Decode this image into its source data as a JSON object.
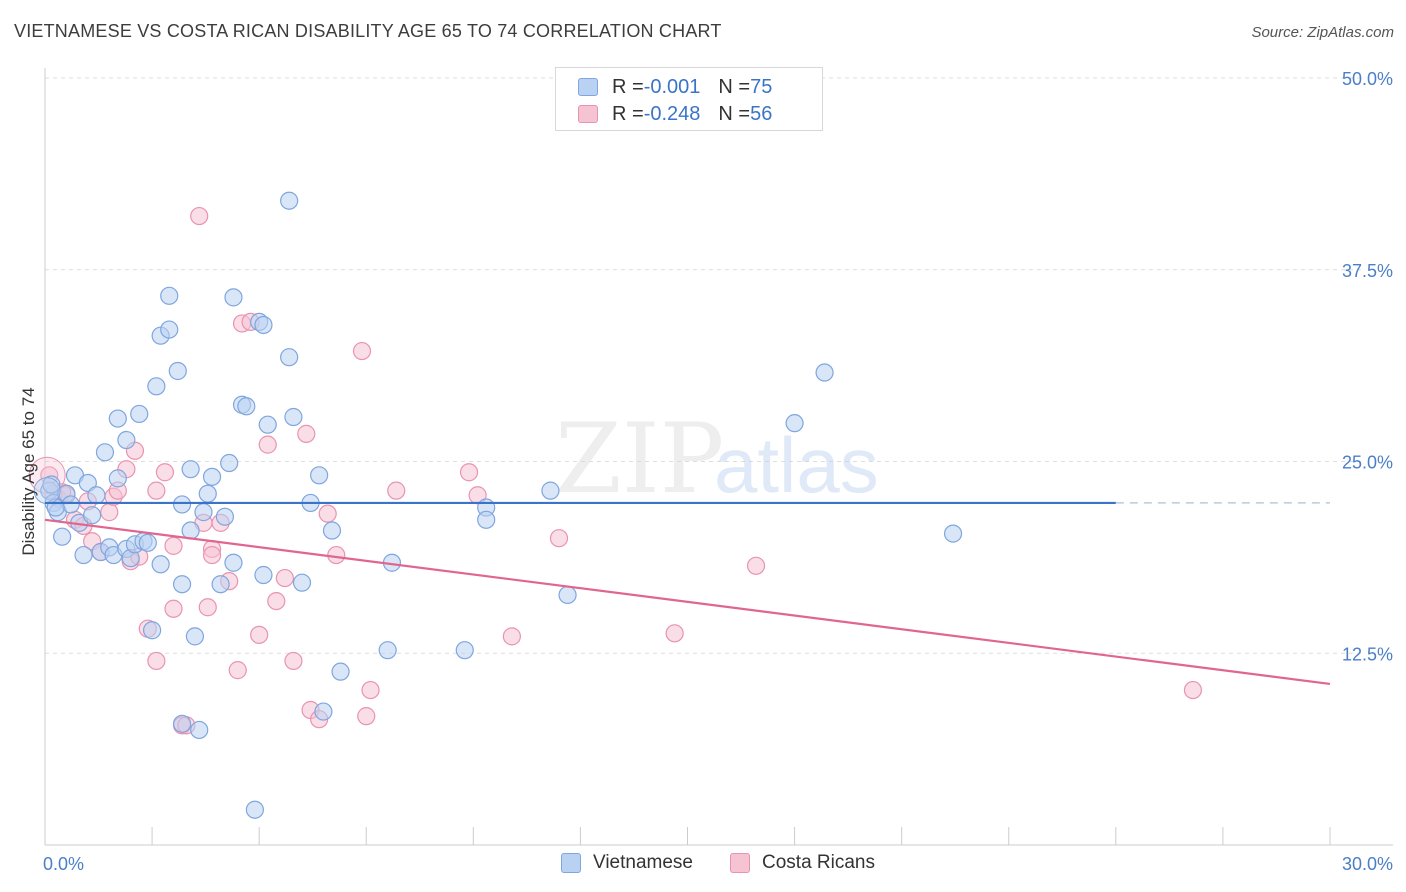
{
  "title": "VIETNAMESE VS COSTA RICAN DISABILITY AGE 65 TO 74 CORRELATION CHART",
  "source": "Source: ZipAtlas.com",
  "watermark": {
    "zip": "ZIP",
    "atlas": "atlas"
  },
  "colors": {
    "blue_fill": "#b9d1f3",
    "blue_stroke": "#7fa6de",
    "blue_line": "#3a74c8",
    "pink_fill": "#f6c3d3",
    "pink_stroke": "#e993b0",
    "pink_line": "#e0668f",
    "axis_text": "#4a7fc8",
    "grid": "#dddddd"
  },
  "legend": {
    "rows": [
      {
        "r_label": "R = ",
        "r_value": "-0.001",
        "n_label": "N = ",
        "n_value": "75"
      },
      {
        "r_label": "R = ",
        "r_value": "-0.248",
        "n_label": "N = ",
        "n_value": "56"
      }
    ]
  },
  "bottom_legend": [
    "Vietnamese",
    "Costa Ricans"
  ],
  "chart_data": {
    "type": "scatter",
    "xlabel": "",
    "ylabel": "Disability Age 65 to 74",
    "xlim": [
      0,
      30
    ],
    "ylim": [
      0,
      50
    ],
    "x_tick_labels": [
      "0.0%",
      "30.0%"
    ],
    "y_ticks": [
      12.5,
      25.0,
      37.5,
      50.0
    ],
    "y_tick_labels": [
      "12.5%",
      "25.0%",
      "37.5%",
      "50.0%"
    ],
    "grid": "horizontal dashed",
    "legend_position": "top-center",
    "series": [
      {
        "name": "Vietnamese",
        "trend": {
          "x": [
            0,
            25.0
          ],
          "y": [
            22.3,
            22.3
          ],
          "dashed_extension_to_x": 30
        },
        "points": [
          [
            0.1,
            23.1
          ],
          [
            0.2,
            22.3
          ],
          [
            0.3,
            21.7
          ],
          [
            0.4,
            20.1
          ],
          [
            0.5,
            22.9
          ],
          [
            0.6,
            22.2
          ],
          [
            0.7,
            24.1
          ],
          [
            0.8,
            21.0
          ],
          [
            0.9,
            18.9
          ],
          [
            1.0,
            23.6
          ],
          [
            1.1,
            21.5
          ],
          [
            1.2,
            22.8
          ],
          [
            1.3,
            19.1
          ],
          [
            1.4,
            25.6
          ],
          [
            1.5,
            19.4
          ],
          [
            1.6,
            18.9
          ],
          [
            1.7,
            23.9
          ],
          [
            1.7,
            27.8
          ],
          [
            1.9,
            19.3
          ],
          [
            1.9,
            26.4
          ],
          [
            2.0,
            18.7
          ],
          [
            2.1,
            19.6
          ],
          [
            2.2,
            28.1
          ],
          [
            2.3,
            19.8
          ],
          [
            2.4,
            19.7
          ],
          [
            2.5,
            14.0
          ],
          [
            2.6,
            29.9
          ],
          [
            2.7,
            33.2
          ],
          [
            2.7,
            18.3
          ],
          [
            2.9,
            33.6
          ],
          [
            2.9,
            35.8
          ],
          [
            3.1,
            30.9
          ],
          [
            3.2,
            17.0
          ],
          [
            3.2,
            7.9
          ],
          [
            3.2,
            22.2
          ],
          [
            3.4,
            24.5
          ],
          [
            3.4,
            20.5
          ],
          [
            3.5,
            13.6
          ],
          [
            3.6,
            7.5
          ],
          [
            3.7,
            21.7
          ],
          [
            3.8,
            22.9
          ],
          [
            3.9,
            24.0
          ],
          [
            4.1,
            17.0
          ],
          [
            4.2,
            21.4
          ],
          [
            4.3,
            24.9
          ],
          [
            4.4,
            18.4
          ],
          [
            4.4,
            35.7
          ],
          [
            4.6,
            28.7
          ],
          [
            4.7,
            28.6
          ],
          [
            4.9,
            2.3
          ],
          [
            5.0,
            34.1
          ],
          [
            5.1,
            17.6
          ],
          [
            5.1,
            33.9
          ],
          [
            5.2,
            27.4
          ],
          [
            5.7,
            42.0
          ],
          [
            5.7,
            31.8
          ],
          [
            5.8,
            27.9
          ],
          [
            6.0,
            17.1
          ],
          [
            6.2,
            22.3
          ],
          [
            6.4,
            24.1
          ],
          [
            6.5,
            8.7
          ],
          [
            6.7,
            20.5
          ],
          [
            6.9,
            11.3
          ],
          [
            8.0,
            12.7
          ],
          [
            8.1,
            18.4
          ],
          [
            9.8,
            12.7
          ],
          [
            10.3,
            22.0
          ],
          [
            10.3,
            21.2
          ],
          [
            11.8,
            23.1
          ],
          [
            12.2,
            16.3
          ],
          [
            17.5,
            27.5
          ],
          [
            18.2,
            30.8
          ],
          [
            21.2,
            20.3
          ],
          [
            0.25,
            22.0
          ],
          [
            0.15,
            23.5
          ]
        ]
      },
      {
        "name": "Costa Ricans",
        "trend": {
          "x": [
            0,
            30
          ],
          "y": [
            21.2,
            10.5
          ]
        },
        "points": [
          [
            0.1,
            24.1
          ],
          [
            0.3,
            22.6
          ],
          [
            0.5,
            22.8
          ],
          [
            0.7,
            21.2
          ],
          [
            0.9,
            20.8
          ],
          [
            1.0,
            22.4
          ],
          [
            1.1,
            19.8
          ],
          [
            1.3,
            19.1
          ],
          [
            1.5,
            21.7
          ],
          [
            1.6,
            22.7
          ],
          [
            1.7,
            23.1
          ],
          [
            1.9,
            24.5
          ],
          [
            2.0,
            18.5
          ],
          [
            2.1,
            25.7
          ],
          [
            2.2,
            18.8
          ],
          [
            2.4,
            14.1
          ],
          [
            2.6,
            12.0
          ],
          [
            2.6,
            23.1
          ],
          [
            2.8,
            24.3
          ],
          [
            3.0,
            19.5
          ],
          [
            3.0,
            15.4
          ],
          [
            3.2,
            7.8
          ],
          [
            3.3,
            7.8
          ],
          [
            3.6,
            41.0
          ],
          [
            3.7,
            21.0
          ],
          [
            3.8,
            15.5
          ],
          [
            3.9,
            19.3
          ],
          [
            3.9,
            18.9
          ],
          [
            4.1,
            21.0
          ],
          [
            4.3,
            17.2
          ],
          [
            4.5,
            11.4
          ],
          [
            4.6,
            34.0
          ],
          [
            4.8,
            34.1
          ],
          [
            5.0,
            13.7
          ],
          [
            5.2,
            26.1
          ],
          [
            5.4,
            15.9
          ],
          [
            5.6,
            17.4
          ],
          [
            5.8,
            12.0
          ],
          [
            6.1,
            26.8
          ],
          [
            6.2,
            8.8
          ],
          [
            6.4,
            8.2
          ],
          [
            6.6,
            21.6
          ],
          [
            6.8,
            18.9
          ],
          [
            7.4,
            32.2
          ],
          [
            7.5,
            8.4
          ],
          [
            7.6,
            10.1
          ],
          [
            8.2,
            23.1
          ],
          [
            9.9,
            24.3
          ],
          [
            10.1,
            22.8
          ],
          [
            10.9,
            13.6
          ],
          [
            12.0,
            20.0
          ],
          [
            14.7,
            13.8
          ],
          [
            16.6,
            18.2
          ],
          [
            26.8,
            10.1
          ],
          [
            0.2,
            22.9
          ],
          [
            0.4,
            23.0
          ]
        ]
      }
    ]
  }
}
